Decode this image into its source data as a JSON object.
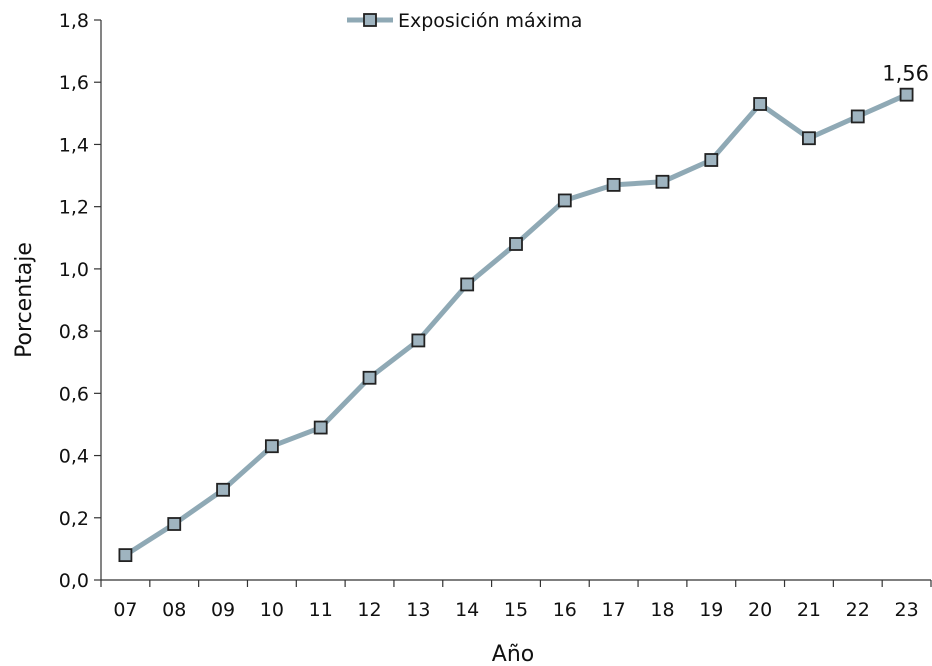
{
  "chart_data": {
    "type": "line",
    "title": "",
    "xlabel": "Año",
    "ylabel": "Porcentaje",
    "categories": [
      "07",
      "08",
      "09",
      "10",
      "11",
      "12",
      "13",
      "14",
      "15",
      "16",
      "17",
      "18",
      "19",
      "20",
      "21",
      "22",
      "23"
    ],
    "series": [
      {
        "name": "Exposición máxima",
        "values": [
          0.08,
          0.18,
          0.29,
          0.43,
          0.49,
          0.65,
          0.77,
          0.95,
          1.08,
          1.22,
          1.27,
          1.28,
          1.35,
          1.53,
          1.42,
          1.49,
          1.56
        ],
        "color": "#8fa9b5",
        "marker_fill": "#9fb4c0"
      }
    ],
    "ylim": [
      0,
      1.8
    ],
    "yticks": [
      "0,0",
      "0,2",
      "0,4",
      "0,6",
      "0,8",
      "1,0",
      "1,2",
      "1,4",
      "1,6",
      "1,8"
    ],
    "grid": false,
    "legend_position": "top-center",
    "annotations": [
      {
        "category": "23",
        "text": "1,56"
      }
    ]
  }
}
